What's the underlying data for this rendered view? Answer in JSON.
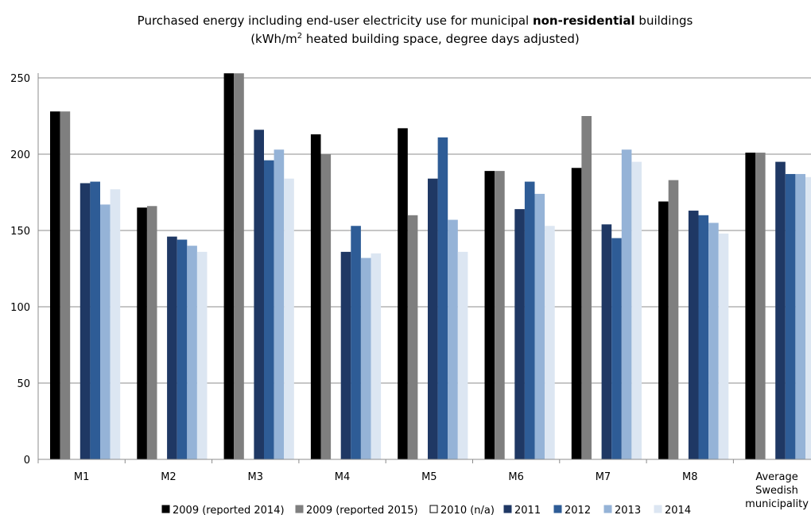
{
  "chart_data": {
    "type": "bar",
    "title": {
      "line1_before": "Purchased energy including end-user electricity use for municipal ",
      "line1_bold": "non-residential",
      "line1_after": " buildings",
      "line2_before": "(kWh/m",
      "line2_sup": "2",
      "line2_after": " heated building space, degree days adjusted)"
    },
    "categories": [
      [
        "M1"
      ],
      [
        "M2"
      ],
      [
        "M3"
      ],
      [
        "M4"
      ],
      [
        "M5"
      ],
      [
        "M6"
      ],
      [
        "M7"
      ],
      [
        "M8"
      ],
      [
        "Average",
        "Swedish",
        "municipality"
      ]
    ],
    "ylim": [
      0,
      250
    ],
    "yticks": [
      "0",
      "50",
      "100",
      "150",
      "200",
      "250"
    ],
    "grid": true,
    "legend_position": "bottom",
    "series": [
      {
        "name": "2009 (reported 2014)",
        "color": "#000000",
        "fill": "#000000",
        "values": [
          228,
          165,
          253,
          213,
          217,
          189,
          191,
          169,
          201
        ]
      },
      {
        "name": "2009 (reported 2015)",
        "color": "#7f7f7f",
        "fill": "#7f7f7f",
        "values": [
          228,
          166,
          253,
          200,
          160,
          189,
          225,
          183,
          201
        ]
      },
      {
        "name": "2010 (n/a)",
        "color": "#000000",
        "fill": "#ffffff",
        "values": [
          null,
          null,
          null,
          null,
          null,
          null,
          null,
          null,
          null
        ]
      },
      {
        "name": "2011",
        "color": "#1f3864",
        "fill": "#1f3864",
        "values": [
          181,
          146,
          216,
          136,
          184,
          164,
          154,
          163,
          195
        ]
      },
      {
        "name": "2012",
        "color": "#2e5c96",
        "fill": "#2e5c96",
        "values": [
          182,
          144,
          196,
          153,
          211,
          182,
          145,
          160,
          187
        ]
      },
      {
        "name": "2013",
        "color": "#95b3d7",
        "fill": "#95b3d7",
        "values": [
          167,
          140,
          203,
          132,
          157,
          174,
          203,
          155,
          187
        ]
      },
      {
        "name": "2014",
        "color": "#dce6f2",
        "fill": "#dce6f2",
        "values": [
          177,
          136,
          184,
          135,
          136,
          153,
          195,
          148,
          185
        ]
      }
    ]
  }
}
